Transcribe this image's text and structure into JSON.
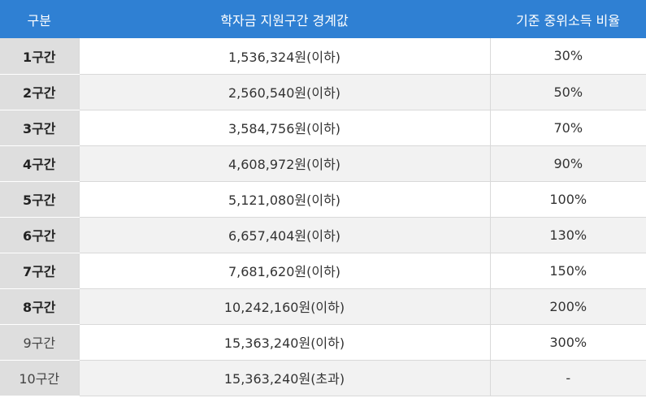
{
  "table": {
    "headers": [
      "구분",
      "학자금 지원구간 경계값",
      "기준 중위소득 비율"
    ],
    "rows": [
      {
        "label": "1구간",
        "threshold": "1,536,324원(이하)",
        "ratio": "30%"
      },
      {
        "label": "2구간",
        "threshold": "2,560,540원(이하)",
        "ratio": "50%"
      },
      {
        "label": "3구간",
        "threshold": "3,584,756원(이하)",
        "ratio": "70%"
      },
      {
        "label": "4구간",
        "threshold": "4,608,972원(이하)",
        "ratio": "90%"
      },
      {
        "label": "5구간",
        "threshold": "5,121,080원(이하)",
        "ratio": "100%"
      },
      {
        "label": "6구간",
        "threshold": "6,657,404원(이하)",
        "ratio": "130%"
      },
      {
        "label": "7구간",
        "threshold": "7,681,620원(이하)",
        "ratio": "150%"
      },
      {
        "label": "8구간",
        "threshold": "10,242,160원(이하)",
        "ratio": "200%"
      },
      {
        "label": "9구간",
        "threshold": "15,363,240원(이하)",
        "ratio": "300%"
      },
      {
        "label": "10구간",
        "threshold": "15,363,240원(초과)",
        "ratio": "-"
      }
    ]
  },
  "colors": {
    "header_bg": "#2f80d3",
    "label_bg": "#dedede",
    "alt_row_bg": "#f2f2f2"
  }
}
